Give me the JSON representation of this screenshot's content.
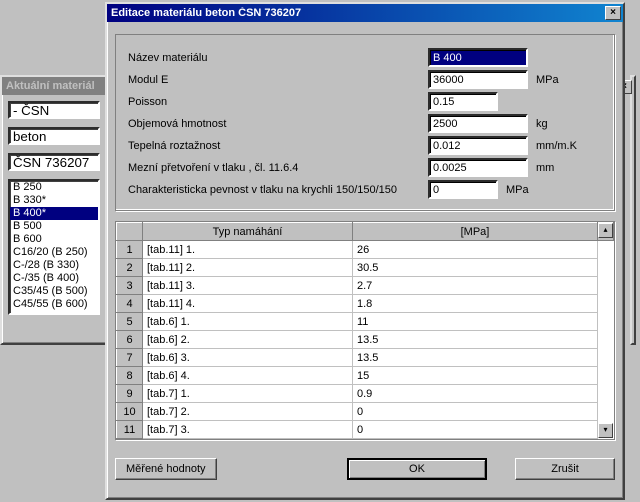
{
  "back_window": {
    "title": "Aktuální materiál",
    "filter1": "- ČSN",
    "filter2": "beton",
    "filter3": "ČSN 736207",
    "items": [
      "B 250",
      "B 330*",
      "B 400*",
      "B 500",
      "B 600",
      "C16/20 (B 250)",
      "C-/28 (B 330)",
      "C-/35 (B 400)",
      "C35/45 (B 500)",
      "C45/55 (B 600)"
    ],
    "selected_index": 2
  },
  "dialog": {
    "title": "Editace materiálu beton ČSN 736207",
    "fields": {
      "nazev_label": "Název materiálu",
      "nazev_value": "B 400",
      "modulE_label": "Modul E",
      "modulE_value": "36000",
      "modulE_unit": "MPa",
      "poisson_label": "Poisson",
      "poisson_value": "0.15",
      "hmotnost_label": "Objemová hmotnost",
      "hmotnost_value": "2500",
      "hmotnost_unit": "kg",
      "roztaznost_label": "Tepelná roztažnost",
      "roztaznost_value": "0.012",
      "roztaznost_unit": "mm/m.K",
      "pretvoreni_label": "Mezní přetvoření v tlaku , čl. 11.6.4",
      "pretvoreni_value": "0.0025",
      "pretvoreni_unit": "mm",
      "pevnost_label": "Charakteristicka pevnost v tlaku na krychli 150/150/150",
      "pevnost_value": "0",
      "pevnost_unit": "MPa"
    },
    "grid": {
      "col_type": "Typ namáhání",
      "col_value": "[MPa]",
      "rows": [
        {
          "n": "1",
          "t": "[tab.11]  1.",
          "v": "26"
        },
        {
          "n": "2",
          "t": "[tab.11]  2.",
          "v": "30.5"
        },
        {
          "n": "3",
          "t": "[tab.11]  3.",
          "v": "2.7"
        },
        {
          "n": "4",
          "t": "[tab.11]  4.",
          "v": "1.8"
        },
        {
          "n": "5",
          "t": "[tab.6]  1.",
          "v": "11"
        },
        {
          "n": "6",
          "t": "[tab.6]  2.",
          "v": "13.5"
        },
        {
          "n": "7",
          "t": "[tab.6]  3.",
          "v": "13.5"
        },
        {
          "n": "8",
          "t": "[tab.6]  4.",
          "v": "15"
        },
        {
          "n": "9",
          "t": "[tab.7]  1.",
          "v": "0.9"
        },
        {
          "n": "10",
          "t": "[tab.7]  2.",
          "v": "0"
        },
        {
          "n": "11",
          "t": "[tab.7]  3.",
          "v": "0"
        }
      ]
    },
    "buttons": {
      "measured": "Měřené hodnoty",
      "ok": "OK",
      "cancel": "Zrušit"
    }
  },
  "colors": {
    "selection": "#000080",
    "face": "#c0c0c0"
  }
}
